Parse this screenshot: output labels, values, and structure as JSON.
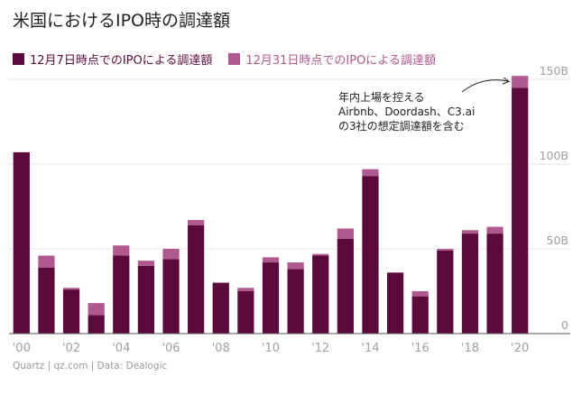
{
  "title": "米国におけるIPO時の調達額",
  "source": "Quartz | qz.com | Data: Dealogic",
  "annotation": {
    "lines": [
      "年内上場を控える",
      "Airbnb、Doordash、C3.ai",
      "の3社の想定調達額を含む"
    ]
  },
  "colors": {
    "series1": "#5c0a3c",
    "series2": "#b1588e",
    "gridline": "#e6e6e6",
    "axis_text": "#a0a0a0",
    "baseline": "#555555"
  },
  "chart_data": {
    "type": "bar",
    "stacked": true,
    "categories": [
      "2000",
      "2001",
      "2002",
      "2003",
      "2004",
      "2005",
      "2006",
      "2007",
      "2008",
      "2009",
      "2010",
      "2011",
      "2012",
      "2013",
      "2014",
      "2015",
      "2016",
      "2017",
      "2018",
      "2019",
      "2020"
    ],
    "x_tick_labels": [
      "'00",
      "",
      "'02",
      "",
      "'04",
      "",
      "'06",
      "",
      "'08",
      "",
      "'10",
      "",
      "'12",
      "",
      "'14",
      "",
      "'16",
      "",
      "'18",
      "",
      "'20"
    ],
    "series": [
      {
        "name": "12月7日時点でのIPOによる調達額",
        "values": [
          107,
          39,
          26,
          11,
          46,
          40,
          44,
          64,
          30,
          25,
          42,
          38,
          46,
          56,
          93,
          36,
          22,
          49,
          59,
          59,
          145
        ]
      },
      {
        "name": "12月31日時点でのIPOによる調達額",
        "values": [
          0,
          7,
          1,
          7,
          6,
          3,
          6,
          3,
          0,
          2,
          3,
          4,
          1,
          6,
          4,
          0,
          3,
          1,
          2,
          4,
          7
        ]
      }
    ],
    "ylim": [
      0,
      150
    ],
    "y_ticks": [
      0,
      50,
      100,
      150
    ],
    "y_tick_labels": [
      "0",
      "50B",
      "100B",
      "150B"
    ],
    "grid": true,
    "legend_position": "top-left",
    "xlabel": "",
    "ylabel": ""
  }
}
